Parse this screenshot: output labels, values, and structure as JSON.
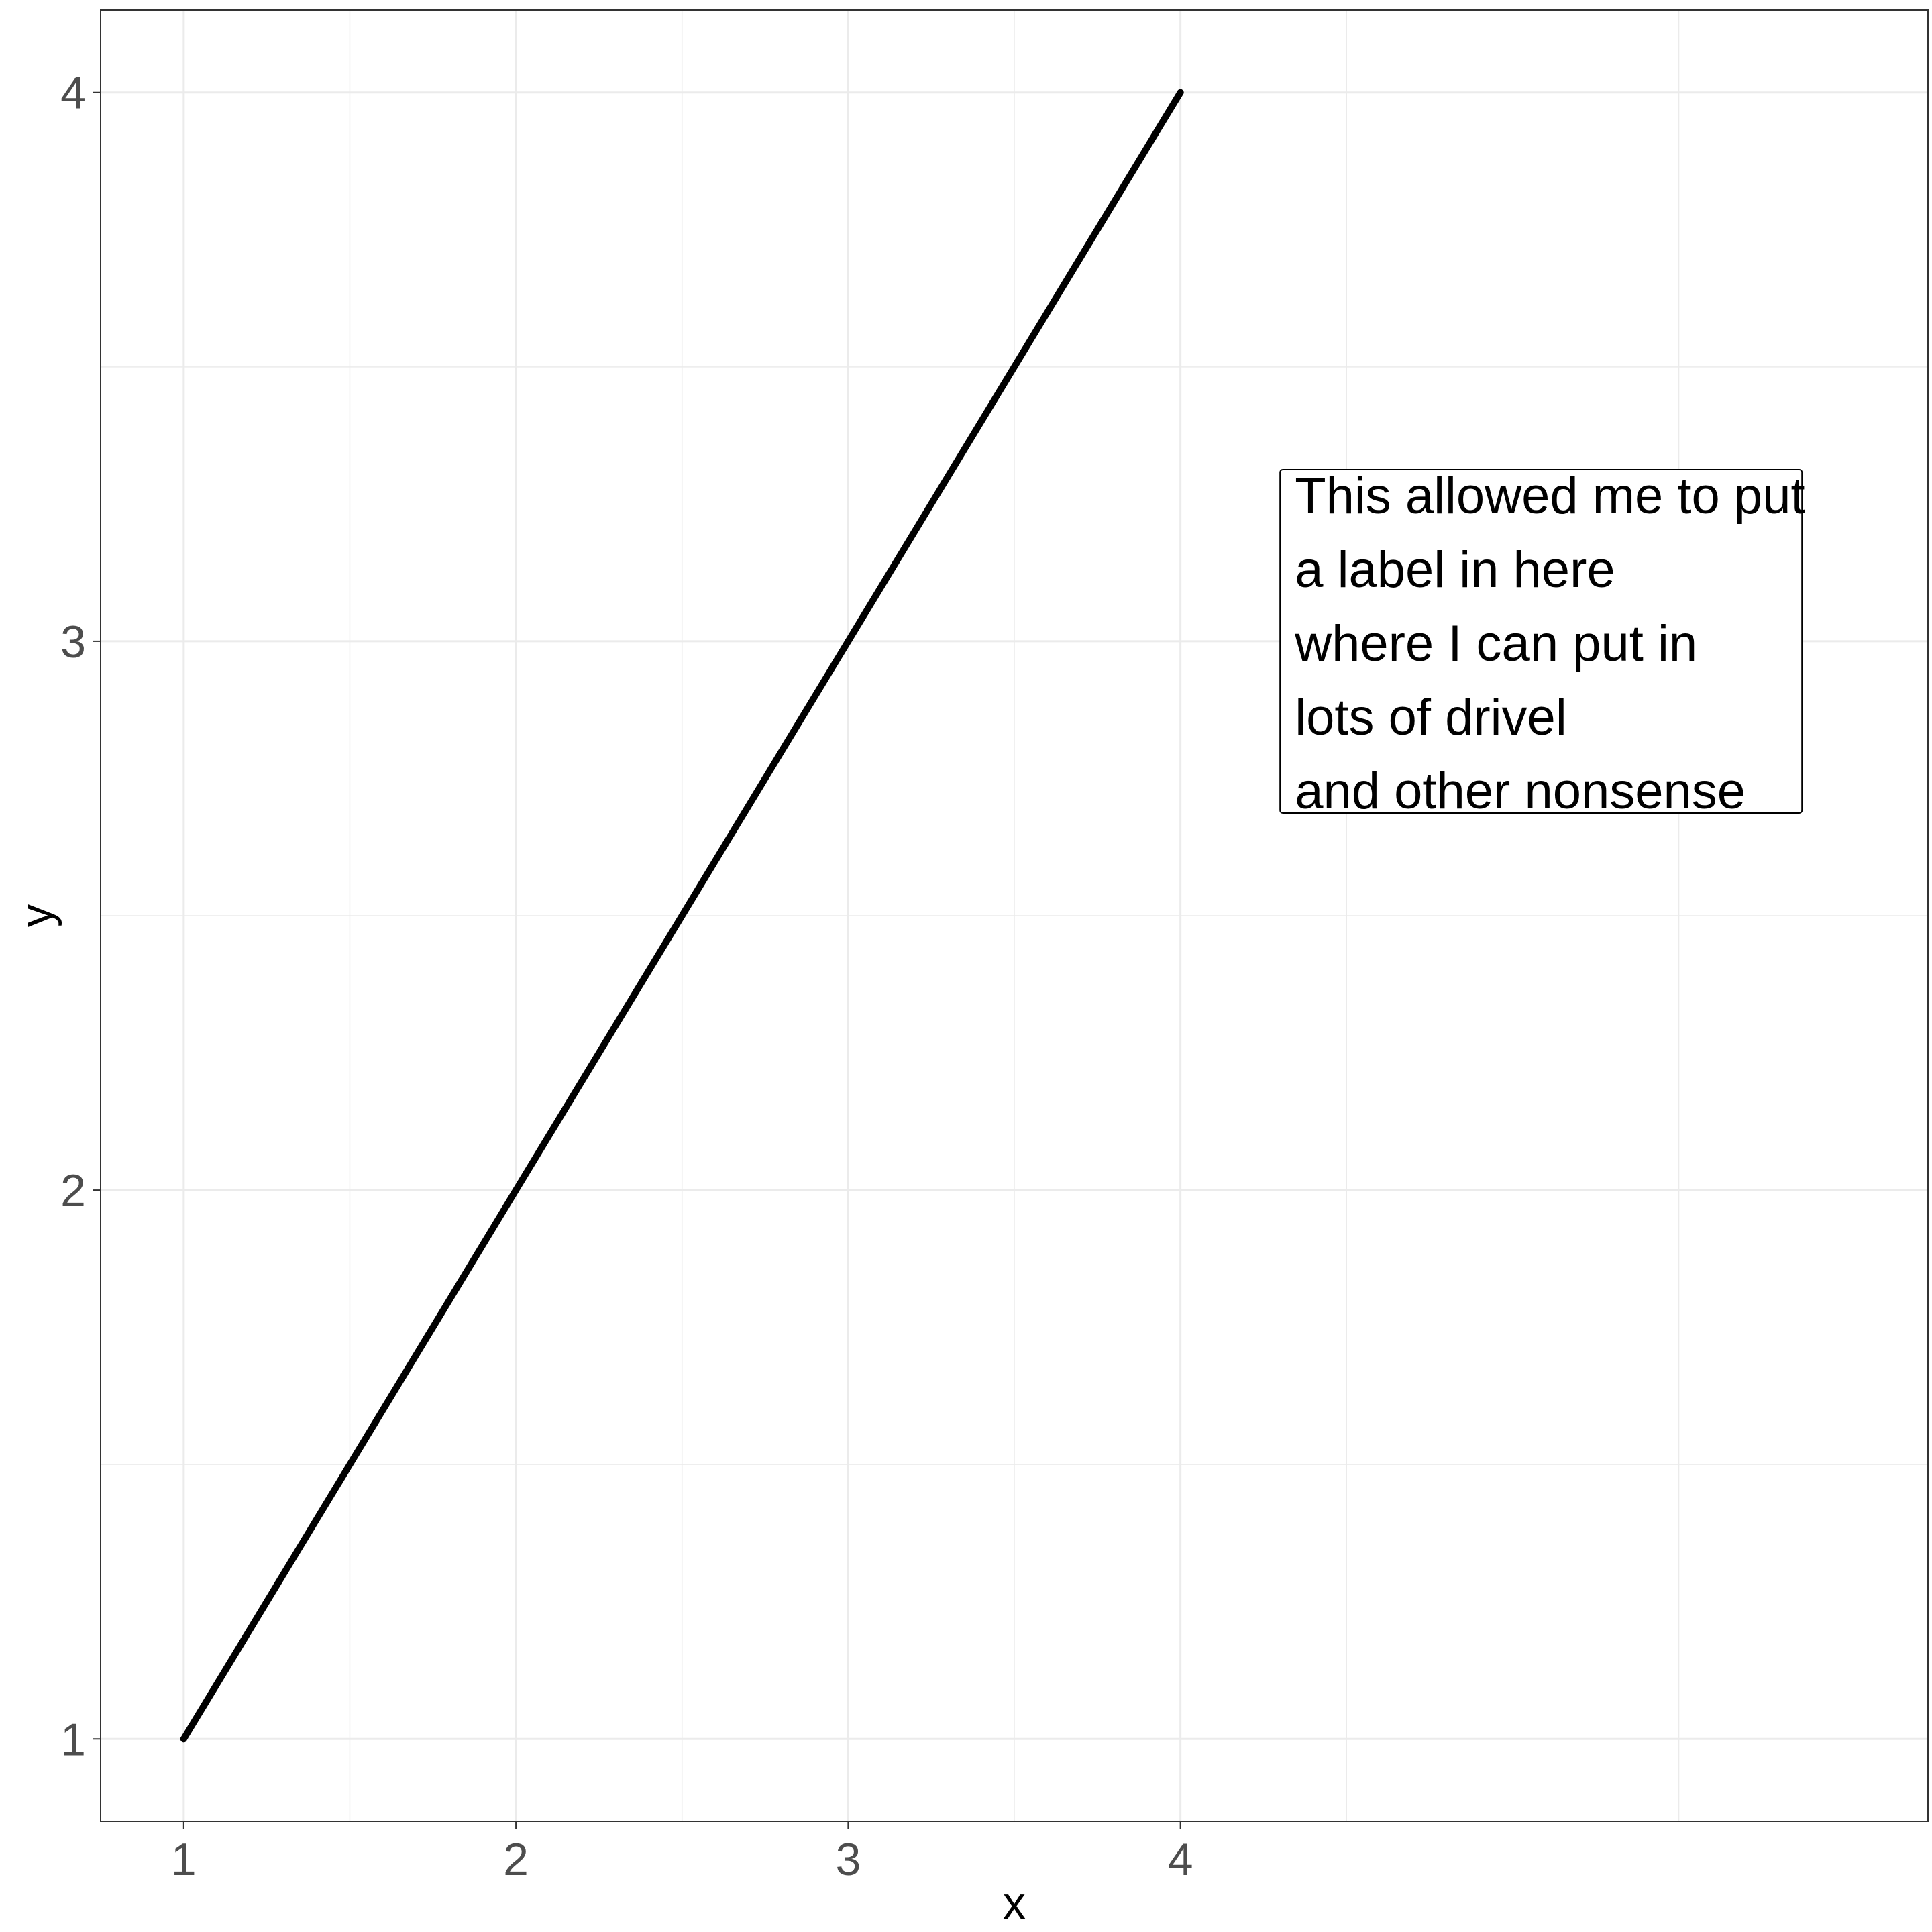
{
  "chart_data": {
    "type": "line",
    "title": "",
    "xlabel": "x",
    "ylabel": "y",
    "xlim": [
      0.75,
      6.25
    ],
    "ylim": [
      0.85,
      4.15
    ],
    "grid": true,
    "x_ticks": [
      1,
      2,
      3,
      4
    ],
    "x_tick_labels": [
      "1",
      "2",
      "3",
      "4"
    ],
    "y_ticks": [
      1,
      2,
      3,
      4
    ],
    "y_tick_labels": [
      "1",
      "2",
      "3",
      "4"
    ],
    "x_minor_ticks": [
      1.5,
      2.5,
      3.5,
      4.5,
      5.5
    ],
    "y_minor_ticks": [
      1.5,
      2.5,
      3.5
    ],
    "series": [
      {
        "x": [
          1,
          2,
          3,
          4
        ],
        "y": [
          1,
          2,
          3,
          4
        ],
        "color": "#000000"
      }
    ],
    "annotation": {
      "anchor": [
        4.3,
        3.3
      ],
      "lines": [
        "This allowed me to put",
        "a label in here",
        "where I can put in",
        "lots of drivel",
        "and other nonsense"
      ]
    }
  },
  "colors": {
    "background": "#ffffff",
    "grid": "#ebebeb",
    "panel_border": "#333333",
    "tick_text": "#4d4d4d",
    "line": "#000000"
  }
}
